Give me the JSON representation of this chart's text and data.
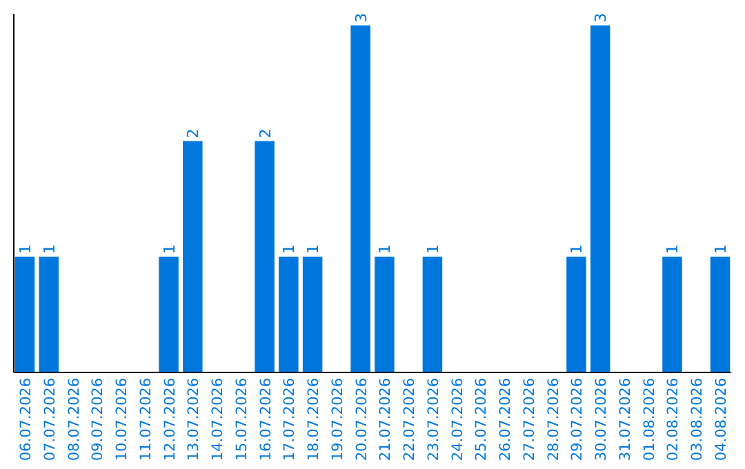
{
  "chart_data": {
    "type": "bar",
    "categories": [
      "06.07.2026",
      "07.07.2026",
      "08.07.2026",
      "09.07.2026",
      "10.07.2026",
      "11.07.2026",
      "12.07.2026",
      "13.07.2026",
      "14.07.2026",
      "15.07.2026",
      "16.07.2026",
      "17.07.2026",
      "18.07.2026",
      "19.07.2026",
      "20.07.2026",
      "21.07.2026",
      "22.07.2026",
      "23.07.2026",
      "24.07.2026",
      "25.07.2026",
      "26.07.2026",
      "27.07.2026",
      "28.07.2026",
      "29.07.2026",
      "30.07.2026",
      "31.07.2026",
      "01.08.2026",
      "02.08.2026",
      "03.08.2026",
      "04.08.2026"
    ],
    "values": [
      1,
      1,
      0,
      0,
      0,
      0,
      1,
      2,
      0,
      0,
      2,
      1,
      1,
      0,
      3,
      1,
      0,
      1,
      0,
      0,
      0,
      0,
      0,
      1,
      3,
      0,
      0,
      1,
      0,
      1
    ],
    "value_labels": [
      "1",
      "1",
      null,
      null,
      null,
      null,
      "1",
      "2",
      null,
      null,
      "2",
      "1",
      "1",
      null,
      "3",
      "1",
      null,
      "1",
      null,
      null,
      null,
      null,
      null,
      "1",
      "3",
      null,
      null,
      "1",
      null,
      "1"
    ],
    "color": "#0077dd",
    "ylim": [
      0,
      3.1
    ],
    "tick_labels": "x"
  }
}
